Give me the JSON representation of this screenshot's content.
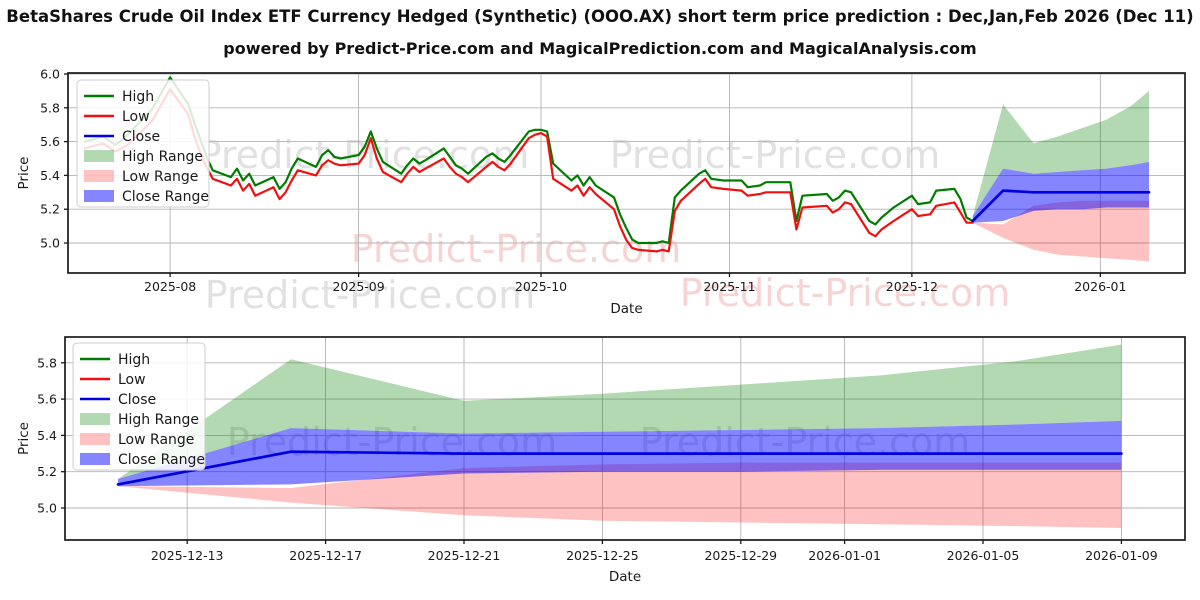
{
  "title": "BetaShares Crude Oil Index ETF Currency Hedged (Synthetic) (OOO.AX) short term price prediction : Dec,Jan,Feb 2026 (Dec 11)",
  "subtitle": "powered by Predict-Price.com and MagicalPrediction.com and MagicalAnalysis.com",
  "watermark": "Predict-Price.com",
  "colors": {
    "high": "#007d00",
    "low": "#ee1111",
    "close": "#0000e0",
    "high_fill": "rgba(0,128,0,0.30)",
    "low_fill": "rgba(255,0,0,0.24)",
    "close_fill": "rgba(0,0,255,0.48)",
    "grid": "#b3b3b3",
    "text": "#1a1a1a"
  },
  "legend": [
    {
      "label": "High",
      "type": "line",
      "color_key": "high"
    },
    {
      "label": "Low",
      "type": "line",
      "color_key": "low"
    },
    {
      "label": "Close",
      "type": "line",
      "color_key": "close"
    },
    {
      "label": "High Range",
      "type": "patch",
      "color_key": "high_fill"
    },
    {
      "label": "Low Range",
      "type": "patch",
      "color_key": "low_fill"
    },
    {
      "label": "Close Range",
      "type": "patch",
      "color_key": "close_fill"
    }
  ],
  "chart_data": [
    {
      "type": "line",
      "title": "Price history with short-term prediction ranges",
      "xlabel": "Date",
      "ylabel": "Price",
      "ylim": [
        4.82,
        6.01
      ],
      "grid": true,
      "legend_position": "upper left",
      "y_ticks": [
        "5.0",
        "5.2",
        "5.4",
        "5.6",
        "5.8",
        "6.0"
      ],
      "x_ticks": [
        {
          "label": "2025-08",
          "date": "2025-08-01"
        },
        {
          "label": "2025-09",
          "date": "2025-09-01"
        },
        {
          "label": "2025-10",
          "date": "2025-10-01"
        },
        {
          "label": "2025-11",
          "date": "2025-11-01"
        },
        {
          "label": "2025-12",
          "date": "2025-12-01"
        },
        {
          "label": "2026-01",
          "date": "2026-01-01"
        }
      ],
      "history": {
        "dates": [
          "2025-07-18",
          "2025-07-21",
          "2025-07-23",
          "2025-07-25",
          "2025-07-29",
          "2025-08-01",
          "2025-08-04",
          "2025-08-05",
          "2025-08-06",
          "2025-08-07",
          "2025-08-08",
          "2025-08-11",
          "2025-08-12",
          "2025-08-13",
          "2025-08-14",
          "2025-08-15",
          "2025-08-18",
          "2025-08-19",
          "2025-08-20",
          "2025-08-21",
          "2025-08-22",
          "2025-08-25",
          "2025-08-26",
          "2025-08-27",
          "2025-08-28",
          "2025-08-29",
          "2025-09-01",
          "2025-09-02",
          "2025-09-03",
          "2025-09-04",
          "2025-09-05",
          "2025-09-08",
          "2025-09-09",
          "2025-09-10",
          "2025-09-11",
          "2025-09-12",
          "2025-09-15",
          "2025-09-16",
          "2025-09-17",
          "2025-09-18",
          "2025-09-19",
          "2025-09-22",
          "2025-09-23",
          "2025-09-24",
          "2025-09-25",
          "2025-09-26",
          "2025-09-29",
          "2025-09-30",
          "2025-10-01",
          "2025-10-02",
          "2025-10-03",
          "2025-10-06",
          "2025-10-07",
          "2025-10-08",
          "2025-10-09",
          "2025-10-10",
          "2025-10-13",
          "2025-10-14",
          "2025-10-15",
          "2025-10-16",
          "2025-10-17",
          "2025-10-20",
          "2025-10-21",
          "2025-10-22",
          "2025-10-23",
          "2025-10-24",
          "2025-10-27",
          "2025-10-28",
          "2025-10-29",
          "2025-10-31",
          "2025-11-03",
          "2025-11-04",
          "2025-11-06",
          "2025-11-07",
          "2025-11-11",
          "2025-11-12",
          "2025-11-13",
          "2025-11-17",
          "2025-11-18",
          "2025-11-19",
          "2025-11-20",
          "2025-11-21",
          "2025-11-24",
          "2025-11-25",
          "2025-11-26",
          "2025-11-28",
          "2025-12-01",
          "2025-12-02",
          "2025-12-04",
          "2025-12-05",
          "2025-12-08",
          "2025-12-09",
          "2025-12-10",
          "2025-12-11"
        ],
        "series": [
          {
            "name": "High",
            "values": [
              5.6,
              5.63,
              5.58,
              5.64,
              5.79,
              5.98,
              5.82,
              5.71,
              5.61,
              5.51,
              5.43,
              5.39,
              5.44,
              5.37,
              5.41,
              5.34,
              5.39,
              5.32,
              5.36,
              5.44,
              5.5,
              5.45,
              5.52,
              5.55,
              5.51,
              5.5,
              5.52,
              5.57,
              5.66,
              5.56,
              5.48,
              5.41,
              5.46,
              5.5,
              5.47,
              5.49,
              5.56,
              5.51,
              5.46,
              5.44,
              5.41,
              5.51,
              5.53,
              5.5,
              5.48,
              5.52,
              5.66,
              5.67,
              5.67,
              5.66,
              5.47,
              5.37,
              5.4,
              5.34,
              5.39,
              5.34,
              5.27,
              5.17,
              5.09,
              5.02,
              5.0,
              5.0,
              5.01,
              5.0,
              5.27,
              5.31,
              5.41,
              5.43,
              5.38,
              5.37,
              5.37,
              5.33,
              5.34,
              5.36,
              5.36,
              5.13,
              5.28,
              5.29,
              5.25,
              5.27,
              5.31,
              5.3,
              5.13,
              5.11,
              5.15,
              5.21,
              5.28,
              5.23,
              5.24,
              5.31,
              5.32,
              5.26,
              5.15,
              5.13
            ]
          },
          {
            "name": "Low",
            "values": [
              5.56,
              5.59,
              5.54,
              5.58,
              5.72,
              5.91,
              5.76,
              5.63,
              5.53,
              5.45,
              5.38,
              5.34,
              5.38,
              5.31,
              5.35,
              5.28,
              5.33,
              5.26,
              5.3,
              5.37,
              5.43,
              5.4,
              5.46,
              5.49,
              5.47,
              5.46,
              5.47,
              5.52,
              5.62,
              5.5,
              5.42,
              5.36,
              5.41,
              5.45,
              5.42,
              5.44,
              5.5,
              5.45,
              5.41,
              5.39,
              5.36,
              5.45,
              5.48,
              5.45,
              5.43,
              5.47,
              5.62,
              5.64,
              5.65,
              5.63,
              5.38,
              5.31,
              5.34,
              5.28,
              5.33,
              5.29,
              5.2,
              5.1,
              5.02,
              4.97,
              4.96,
              4.95,
              4.96,
              4.95,
              5.19,
              5.25,
              5.35,
              5.38,
              5.33,
              5.32,
              5.31,
              5.28,
              5.29,
              5.3,
              5.3,
              5.08,
              5.21,
              5.22,
              5.18,
              5.2,
              5.24,
              5.23,
              5.06,
              5.04,
              5.08,
              5.13,
              5.2,
              5.16,
              5.17,
              5.22,
              5.24,
              5.18,
              5.12,
              5.12
            ]
          }
        ]
      },
      "prediction": {
        "dates": [
          "2025-12-11",
          "2025-12-16",
          "2025-12-21",
          "2025-12-25",
          "2025-12-29",
          "2026-01-02",
          "2026-01-06",
          "2026-01-09"
        ],
        "close": [
          5.13,
          5.31,
          5.3,
          5.3,
          5.3,
          5.3,
          5.3,
          5.3
        ],
        "close_upper": [
          5.16,
          5.44,
          5.41,
          5.42,
          5.43,
          5.44,
          5.46,
          5.48
        ],
        "close_lower": [
          5.12,
          5.13,
          5.19,
          5.2,
          5.2,
          5.21,
          5.21,
          5.21
        ],
        "high_upper": [
          5.16,
          5.82,
          5.59,
          5.63,
          5.68,
          5.73,
          5.81,
          5.9
        ],
        "low_upper": [
          5.12,
          5.11,
          5.22,
          5.24,
          5.25,
          5.25,
          5.25,
          5.25
        ],
        "low_lower": [
          5.12,
          5.03,
          4.96,
          4.93,
          4.92,
          4.91,
          4.9,
          4.89
        ]
      }
    },
    {
      "type": "area-line",
      "title": "Prediction detail Dec 2025 - Jan 2026",
      "xlabel": "Date",
      "ylabel": "Price",
      "ylim": [
        4.86,
        5.94
      ],
      "grid": true,
      "legend_position": "upper left",
      "y_ticks": [
        "5.0",
        "5.2",
        "5.4",
        "5.6",
        "5.8"
      ],
      "x_ticks": [
        {
          "label": "2025-12-13",
          "date": "2025-12-13"
        },
        {
          "label": "2025-12-17",
          "date": "2025-12-17"
        },
        {
          "label": "2025-12-21",
          "date": "2025-12-21"
        },
        {
          "label": "2025-12-25",
          "date": "2025-12-25"
        },
        {
          "label": "2025-12-29",
          "date": "2025-12-29"
        },
        {
          "label": "2026-01-01",
          "date": "2026-01-01"
        },
        {
          "label": "2026-01-05",
          "date": "2026-01-05"
        },
        {
          "label": "2026-01-09",
          "date": "2026-01-09"
        }
      ],
      "prediction": {
        "dates": [
          "2025-12-11",
          "2025-12-16",
          "2025-12-21",
          "2025-12-25",
          "2025-12-29",
          "2026-01-02",
          "2026-01-06",
          "2026-01-09"
        ],
        "close": [
          5.13,
          5.31,
          5.3,
          5.3,
          5.3,
          5.3,
          5.3,
          5.3
        ],
        "close_upper": [
          5.16,
          5.44,
          5.41,
          5.42,
          5.43,
          5.44,
          5.46,
          5.48
        ],
        "close_lower": [
          5.12,
          5.13,
          5.19,
          5.2,
          5.2,
          5.21,
          5.21,
          5.21
        ],
        "high_upper": [
          5.16,
          5.82,
          5.59,
          5.63,
          5.68,
          5.73,
          5.81,
          5.9
        ],
        "low_upper": [
          5.12,
          5.11,
          5.22,
          5.24,
          5.25,
          5.25,
          5.25,
          5.25
        ],
        "low_lower": [
          5.12,
          5.03,
          4.96,
          4.93,
          4.92,
          4.91,
          4.9,
          4.89
        ]
      }
    }
  ]
}
